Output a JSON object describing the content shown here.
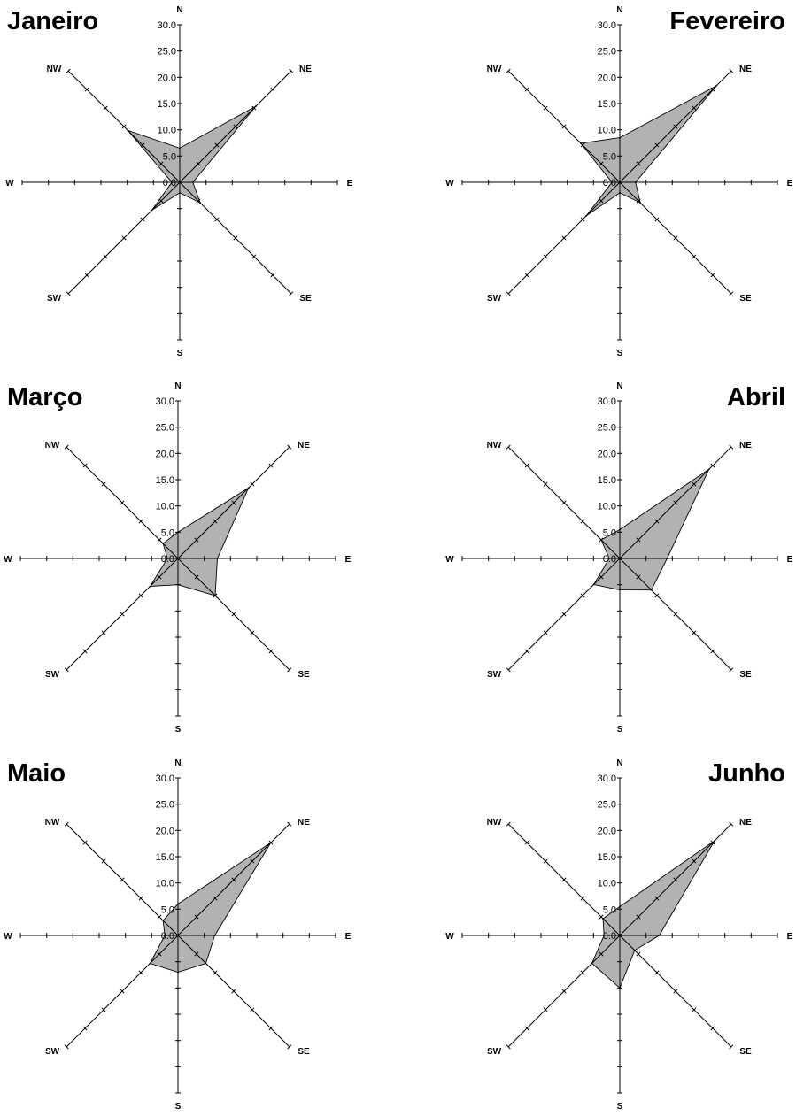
{
  "chart_data": [
    {
      "type": "radar",
      "title": "Janeiro",
      "directions": [
        "N",
        "NE",
        "E",
        "SE",
        "S",
        "SW",
        "W",
        "NW"
      ],
      "values": [
        6.5,
        20.5,
        2.5,
        5.5,
        2.0,
        7.5,
        1.5,
        14.0
      ],
      "rlim": [
        0,
        30
      ],
      "tick_labels": [
        "0.0",
        "5.0",
        "10.0",
        "15.0",
        "20.0",
        "25.0",
        "30.0"
      ]
    },
    {
      "type": "radar",
      "title": "Fevereiro",
      "directions": [
        "N",
        "NE",
        "E",
        "SE",
        "S",
        "SW",
        "W",
        "NW"
      ],
      "values": [
        8.5,
        26.0,
        3.0,
        5.5,
        2.0,
        9.0,
        1.5,
        10.5
      ],
      "rlim": [
        0,
        30
      ],
      "tick_labels": [
        "0.0",
        "5.0",
        "10.0",
        "15.0",
        "20.0",
        "25.0",
        "30.0"
      ]
    },
    {
      "type": "radar",
      "title": "Março",
      "directions": [
        "N",
        "NE",
        "E",
        "SE",
        "S",
        "SW",
        "W",
        "NW"
      ],
      "values": [
        5.0,
        19.0,
        7.5,
        10.0,
        5.0,
        7.5,
        2.0,
        4.0
      ],
      "rlim": [
        0,
        30
      ],
      "tick_labels": [
        "0.0",
        "5.0",
        "10.0",
        "15.0",
        "20.0",
        "25.0",
        "30.0"
      ]
    },
    {
      "type": "radar",
      "title": "Abril",
      "directions": [
        "N",
        "NE",
        "E",
        "SE",
        "S",
        "SW",
        "W",
        "NW"
      ],
      "values": [
        5.5,
        24.0,
        9.0,
        8.5,
        6.0,
        7.0,
        2.0,
        5.0
      ],
      "rlim": [
        0,
        30
      ],
      "tick_labels": [
        "0.0",
        "5.0",
        "10.0",
        "15.0",
        "20.0",
        "25.0",
        "30.0"
      ]
    },
    {
      "type": "radar",
      "title": "Maio",
      "directions": [
        "N",
        "NE",
        "E",
        "SE",
        "S",
        "SW",
        "W",
        "NW"
      ],
      "values": [
        6.0,
        25.0,
        7.0,
        7.5,
        7.0,
        7.5,
        2.5,
        4.0
      ],
      "rlim": [
        0,
        30
      ],
      "tick_labels": [
        "0.0",
        "5.0",
        "10.0",
        "15.0",
        "20.0",
        "25.0",
        "30.0"
      ]
    },
    {
      "type": "radar",
      "title": "Junho",
      "directions": [
        "N",
        "NE",
        "E",
        "SE",
        "S",
        "SW",
        "W",
        "NW"
      ],
      "values": [
        5.5,
        25.5,
        7.5,
        4.0,
        10.0,
        7.5,
        3.0,
        4.5
      ],
      "rlim": [
        0,
        30
      ],
      "tick_labels": [
        "0.0",
        "5.0",
        "10.0",
        "15.0",
        "20.0",
        "25.0",
        "30.0"
      ]
    }
  ]
}
